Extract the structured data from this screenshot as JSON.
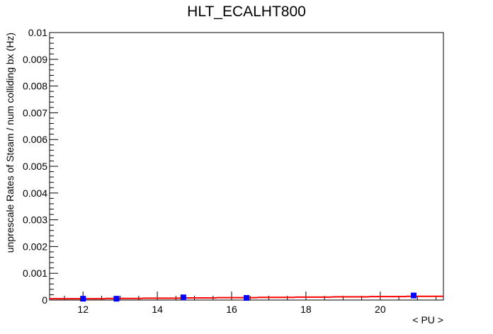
{
  "chart_data": {
    "type": "scatter",
    "title": "HLT_ECALHT800",
    "xlabel": "< PU >",
    "ylabel": "unprescale Rates of Steam / num colliding bx (Hz)",
    "xlim": [
      11.1,
      21.7
    ],
    "ylim": [
      0,
      0.01
    ],
    "x_ticks": [
      12,
      14,
      16,
      18,
      20
    ],
    "x_tick_labels": [
      "12",
      "14",
      "16",
      "18",
      "20"
    ],
    "y_ticks": [
      0,
      0.001,
      0.002,
      0.003,
      0.004,
      0.005,
      0.006,
      0.007,
      0.008,
      0.009,
      0.01
    ],
    "y_tick_labels": [
      "0",
      "0.001",
      "0.002",
      "0.003",
      "0.004",
      "0.005",
      "0.006",
      "0.007",
      "0.008",
      "0.009",
      "0.01"
    ],
    "grid": false,
    "series": [
      {
        "kind": "points",
        "color": "#0000ff",
        "x": [
          12.0,
          12.9,
          14.7,
          16.4,
          20.9
        ],
        "y": [
          5e-05,
          5e-05,
          0.0001,
          8e-05,
          0.00017
        ],
        "yerr": [
          5e-05,
          5e-05,
          5e-05,
          5e-05,
          6e-05
        ]
      },
      {
        "kind": "fit-steps",
        "color": "#ff0000",
        "x_edges": [
          11.1,
          12.6,
          13.6,
          14.6,
          15.6,
          16.7,
          17.7,
          18.7,
          19.7,
          20.7,
          21.7
        ],
        "y": [
          5e-05,
          6e-05,
          7e-05,
          8e-05,
          9e-05,
          0.0001,
          0.00011,
          0.00012,
          0.00013,
          0.00014
        ]
      }
    ]
  }
}
